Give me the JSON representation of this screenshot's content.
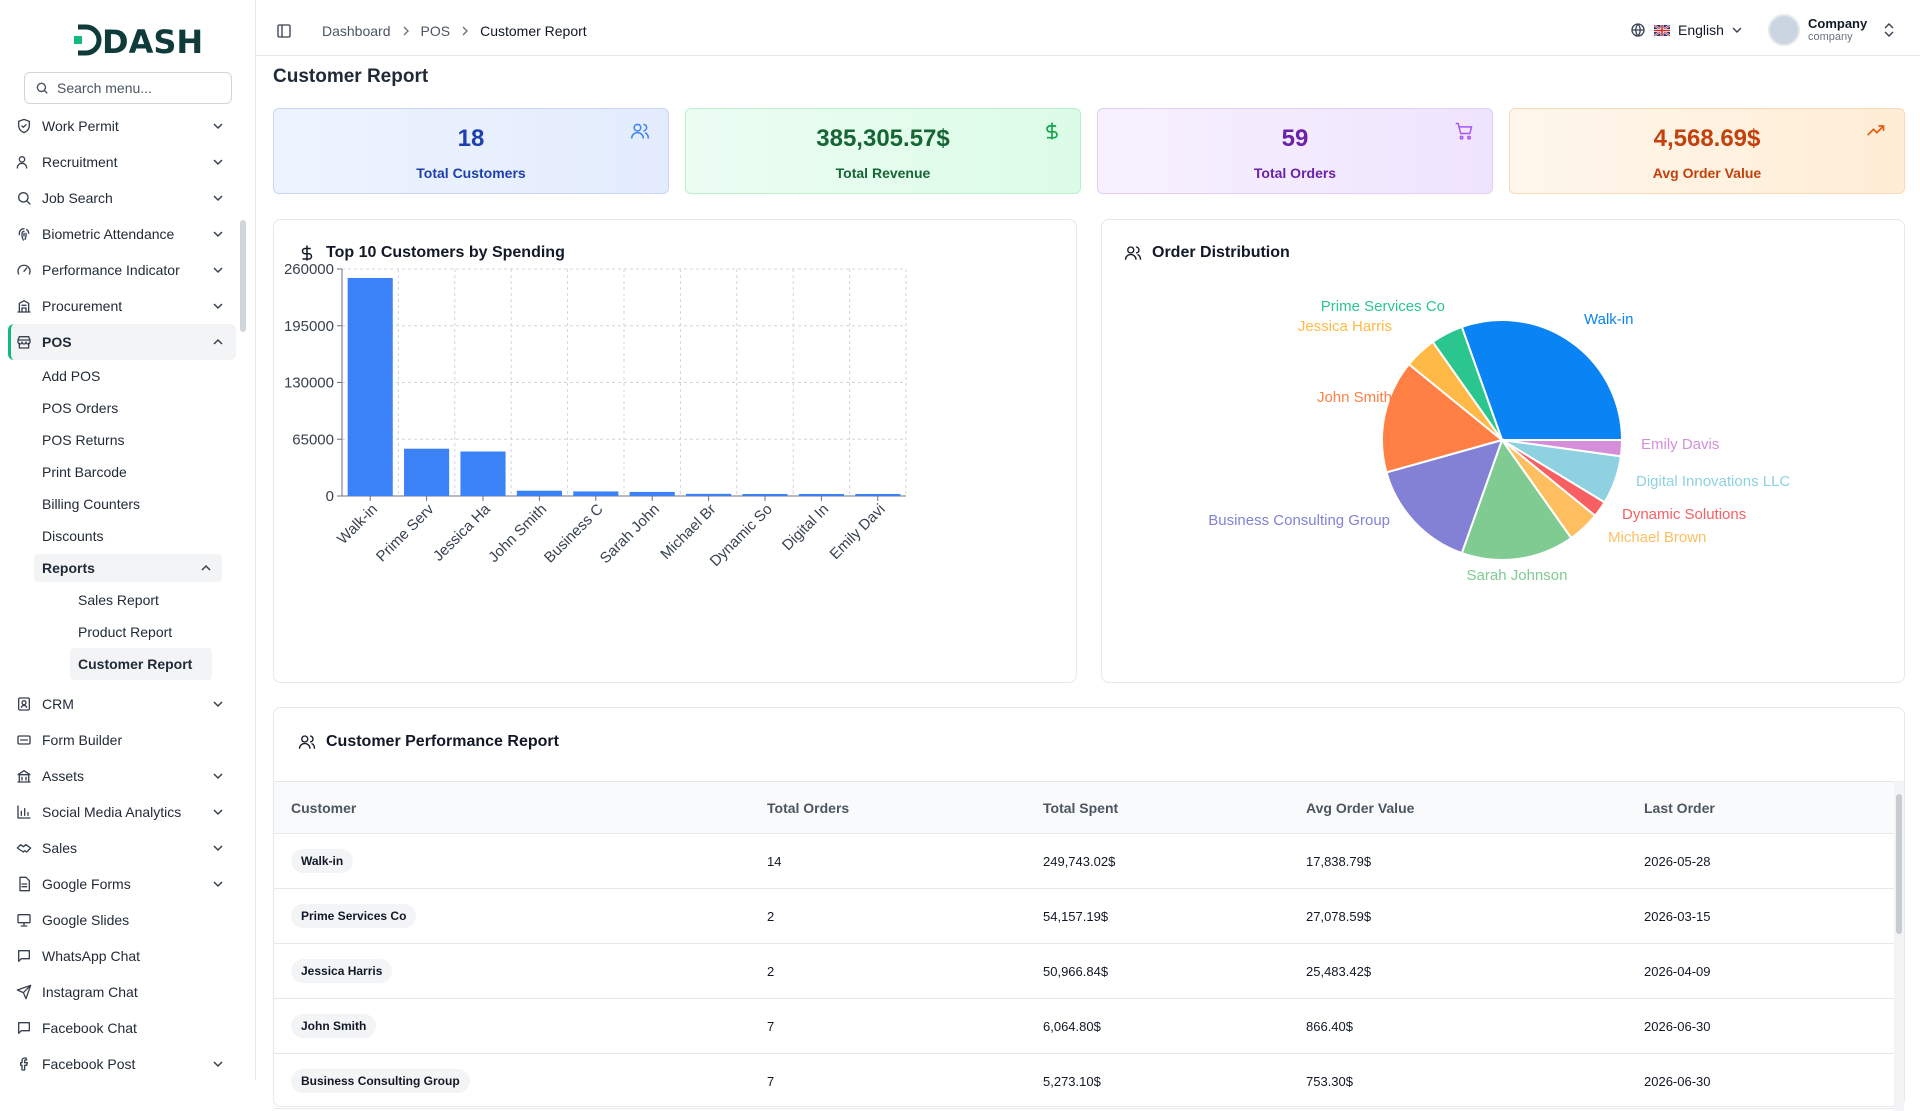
{
  "app": {
    "logo_text": "DASH"
  },
  "sidebar": {
    "search_placeholder": "Search menu...",
    "items_top": [
      {
        "label": "Work Permit",
        "icon": "shield-check-icon"
      },
      {
        "label": "Recruitment",
        "icon": "users-icon"
      },
      {
        "label": "Job Search",
        "icon": "search-icon"
      },
      {
        "label": "Biometric Attendance",
        "icon": "fingerprint-icon"
      },
      {
        "label": "Performance Indicator",
        "icon": "gauge-icon"
      },
      {
        "label": "Procurement",
        "icon": "building-icon"
      }
    ],
    "pos": {
      "label": "POS",
      "icon": "store-icon",
      "children": [
        "Add POS",
        "POS Orders",
        "POS Returns",
        "Print Barcode",
        "Billing Counters",
        "Discounts"
      ],
      "reports": {
        "label": "Reports",
        "children": [
          "Sales Report",
          "Product Report",
          "Customer Report"
        ],
        "active": "Customer Report"
      }
    },
    "items_bottom": [
      {
        "label": "CRM",
        "icon": "contact-icon",
        "chevron": true
      },
      {
        "label": "Form Builder",
        "icon": "form-icon",
        "chevron": false
      },
      {
        "label": "Assets",
        "icon": "assets-icon",
        "chevron": true
      },
      {
        "label": "Social Media Analytics",
        "icon": "bar-chart-icon",
        "chevron": true
      },
      {
        "label": "Sales",
        "icon": "handshake-icon",
        "chevron": true
      },
      {
        "label": "Google Forms",
        "icon": "document-icon",
        "chevron": true
      },
      {
        "label": "Google Slides",
        "icon": "presentation-icon",
        "chevron": false
      },
      {
        "label": "WhatsApp Chat",
        "icon": "chat-icon",
        "chevron": false
      },
      {
        "label": "Instagram Chat",
        "icon": "send-icon",
        "chevron": false
      },
      {
        "label": "Facebook Chat",
        "icon": "chat-icon",
        "chevron": false
      },
      {
        "label": "Facebook Post",
        "icon": "facebook-icon",
        "chevron": true
      }
    ]
  },
  "header": {
    "breadcrumb": [
      "Dashboard",
      "POS",
      "Customer Report"
    ],
    "language": "English",
    "user": {
      "name": "Company",
      "role": "company"
    }
  },
  "page": {
    "title": "Customer Report"
  },
  "stats": [
    {
      "value": "18",
      "label": "Total Customers",
      "icon": "users-icon",
      "color": "#1e40af"
    },
    {
      "value": "385,305.57$",
      "label": "Total Revenue",
      "icon": "dollar-icon",
      "color": "#166534"
    },
    {
      "value": "59",
      "label": "Total Orders",
      "icon": "cart-icon",
      "color": "#6b21a8"
    },
    {
      "value": "4,568.69$",
      "label": "Avg Order Value",
      "icon": "trending-up-icon",
      "color": "#c2410c"
    }
  ],
  "bar_card": {
    "title": "Top 10 Customers by Spending"
  },
  "pie_card": {
    "title": "Order Distribution"
  },
  "chart_data": [
    {
      "type": "bar",
      "title": "Top 10 Customers by Spending",
      "categories": [
        "Walk-in",
        "Prime Serv",
        "Jessica Ha",
        "John Smith",
        "Business C",
        "Sarah John",
        "Michael Br",
        "Dynamic So",
        "Digital In",
        "Emily Davi"
      ],
      "values": [
        249743.02,
        54157.19,
        50966.84,
        6064.8,
        5273.1,
        4700,
        2500,
        2000,
        1600,
        1200
      ],
      "ylim": [
        0,
        260000
      ],
      "yticks": [
        0,
        65000,
        130000,
        195000,
        260000
      ],
      "ytick_labels": [
        "0",
        "65000",
        "130000",
        "195000",
        "260000"
      ],
      "grid": true,
      "color": "#3b82f6"
    },
    {
      "type": "pie",
      "title": "Order Distribution",
      "labels": [
        "Walk-in",
        "Emily Davis",
        "Digital Innovations LLC",
        "Dynamic Solutions",
        "Michael Brown",
        "Sarah Johnson",
        "Business Consulting Group",
        "John Smith",
        "Jessica Harris",
        "Prime Services Co"
      ],
      "values": [
        14,
        1,
        3,
        1,
        2,
        7,
        7,
        7,
        2,
        2
      ],
      "colors": [
        "#0a84f4",
        "#d58fd9",
        "#8ed1e1",
        "#f75f63",
        "#ffbf60",
        "#7fcb91",
        "#8281d6",
        "#ff7f45",
        "#ffb947",
        "#2bc58e"
      ]
    }
  ],
  "table": {
    "title": "Customer Performance Report",
    "columns": [
      "Customer",
      "Total Orders",
      "Total Spent",
      "Avg Order Value",
      "Last Order"
    ],
    "rows": [
      [
        "Walk-in",
        "14",
        "249,743.02$",
        "17,838.79$",
        "2026-05-28"
      ],
      [
        "Prime Services Co",
        "2",
        "54,157.19$",
        "27,078.59$",
        "2026-03-15"
      ],
      [
        "Jessica Harris",
        "2",
        "50,966.84$",
        "25,483.42$",
        "2026-04-09"
      ],
      [
        "John Smith",
        "7",
        "6,064.80$",
        "866.40$",
        "2026-06-30"
      ],
      [
        "Business Consulting Group",
        "7",
        "5,273.10$",
        "753.30$",
        "2026-06-30"
      ]
    ]
  }
}
